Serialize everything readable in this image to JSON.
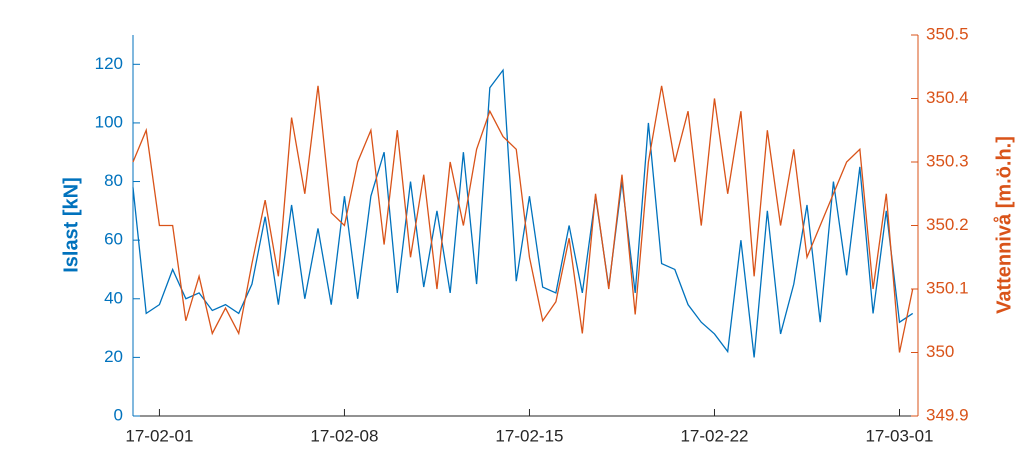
{
  "chart_data": {
    "type": "line",
    "x": [
      -1,
      -0.5,
      0,
      0.5,
      1,
      1.5,
      2,
      2.5,
      3,
      3.5,
      4,
      4.5,
      5,
      5.5,
      6,
      6.5,
      7,
      7.5,
      8,
      8.5,
      9,
      9.5,
      10,
      10.5,
      11,
      11.5,
      12,
      12.5,
      13,
      13.5,
      14,
      14.5,
      15,
      15.5,
      16,
      16.5,
      17,
      17.5,
      18,
      18.5,
      19,
      19.5,
      20,
      20.5,
      21,
      21.5,
      22,
      22.5,
      23,
      23.5,
      24,
      24.5,
      25,
      25.5,
      26,
      26.5,
      27,
      27.5,
      28,
      28.5
    ],
    "xlim": [
      -1,
      28.7
    ],
    "xticks": [
      {
        "value": 0,
        "label": "17-02-01"
      },
      {
        "value": 7,
        "label": "17-02-08"
      },
      {
        "value": 14,
        "label": "17-02-15"
      },
      {
        "value": 21,
        "label": "17-02-22"
      },
      {
        "value": 28,
        "label": "17-03-01"
      }
    ],
    "ylabel": "Islast [kN]",
    "ylim": [
      0,
      130
    ],
    "yticks": [
      0,
      20,
      40,
      60,
      80,
      100,
      120
    ],
    "y2label": "Vattennivå [m.ö.h.]",
    "y2lim": [
      349.9,
      350.5
    ],
    "y2ticks": [
      {
        "value": 349.9,
        "label": "349.9"
      },
      {
        "value": 350,
        "label": "350"
      },
      {
        "value": 350.1,
        "label": "350.1"
      },
      {
        "value": 350.2,
        "label": "350.2"
      },
      {
        "value": 350.3,
        "label": "350.3"
      },
      {
        "value": 350.4,
        "label": "350.4"
      },
      {
        "value": 350.5,
        "label": "350.5"
      }
    ],
    "series": [
      {
        "color": "#0072BD",
        "values": [
          78,
          35,
          38,
          50,
          40,
          42,
          36,
          38,
          35,
          45,
          68,
          38,
          72,
          40,
          64,
          38,
          75,
          40,
          75,
          90,
          42,
          80,
          44,
          70,
          42,
          90,
          45,
          112,
          118,
          46,
          75,
          44,
          42,
          65,
          42,
          75,
          44,
          80,
          42,
          100,
          52,
          50,
          38,
          32,
          28,
          22,
          60,
          20,
          70,
          28,
          45,
          72,
          32,
          80,
          48,
          85,
          35,
          70,
          32,
          35
        ]
      },
      {
        "color": "#D95319",
        "axis": "y2",
        "values": [
          350.3,
          350.35,
          350.2,
          350.2,
          350.05,
          350.12,
          350.03,
          350.07,
          350.03,
          350.14,
          350.24,
          350.12,
          350.37,
          350.25,
          350.42,
          350.22,
          350.2,
          350.3,
          350.35,
          350.17,
          350.35,
          350.15,
          350.28,
          350.1,
          350.3,
          350.2,
          350.32,
          350.38,
          350.34,
          350.32,
          350.15,
          350.05,
          350.08,
          350.18,
          350.03,
          350.25,
          350.1,
          350.28,
          350.06,
          350.3,
          350.42,
          350.3,
          350.38,
          350.2,
          350.4,
          350.25,
          350.38,
          350.12,
          350.35,
          350.2,
          350.32,
          350.15,
          350.2,
          350.25,
          350.3,
          350.32,
          350.1,
          350.25,
          350.0,
          350.1
        ]
      }
    ]
  }
}
